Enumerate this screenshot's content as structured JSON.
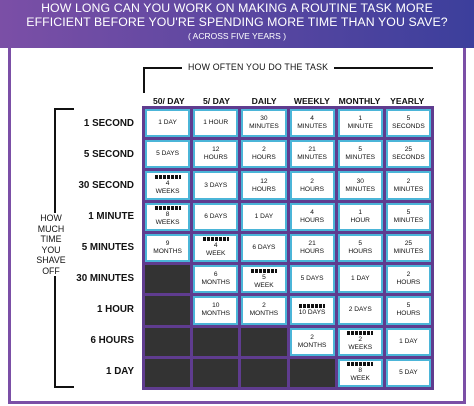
{
  "header": {
    "line1": "HOW LONG CAN YOU WORK ON MAKING A ROUTINE TASK MORE",
    "line2": "EFFICIENT BEFORE YOU'RE SPENDING MORE TIME THAN YOU SAVE?",
    "sub": "( ACROSS FIVE YEARS )"
  },
  "colors": {
    "banner_left": "#7b4fa6",
    "banner_right": "#3c3f9c",
    "grid_bg": "#5f3c8f",
    "cell_border": "#4bb5d8",
    "dark_cell": "#333333"
  },
  "columns_title": "HOW OFTEN YOU DO THE TASK",
  "columns": [
    "50/ DAY",
    "5/ DAY",
    "DAILY",
    "WEEKLY",
    "MONTHLY",
    "YEARLY"
  ],
  "side_label": [
    "HOW",
    "MUCH",
    "TIME",
    "YOU",
    "SHAVE",
    "OFF"
  ],
  "rows": [
    {
      "label": "1 SECOND",
      "cells": [
        {
          "t": [
            "1 DAY"
          ]
        },
        {
          "t": [
            "1 HOUR"
          ]
        },
        {
          "t": [
            "30",
            "MINUTES"
          ]
        },
        {
          "t": [
            "4",
            "MINUTES"
          ]
        },
        {
          "t": [
            "1",
            "MINUTE"
          ]
        },
        {
          "t": [
            "5",
            "SECONDS"
          ]
        }
      ]
    },
    {
      "label": "5 SECOND",
      "cells": [
        {
          "t": [
            "5 DAYS"
          ]
        },
        {
          "t": [
            "12",
            "HOURS"
          ]
        },
        {
          "t": [
            "2",
            "HOURS"
          ]
        },
        {
          "t": [
            "21",
            "MINUTES"
          ]
        },
        {
          "t": [
            "5",
            "MINUTES"
          ]
        },
        {
          "t": [
            "25",
            "SECONDS"
          ]
        }
      ]
    },
    {
      "label": "30 SECOND",
      "cells": [
        {
          "icon": true,
          "t": [
            "4",
            "WEEKS"
          ]
        },
        {
          "t": [
            "3 DAYS"
          ]
        },
        {
          "t": [
            "12",
            "HOURS"
          ]
        },
        {
          "t": [
            "2",
            "HOURS"
          ]
        },
        {
          "t": [
            "30",
            "MINUTES"
          ]
        },
        {
          "t": [
            "2",
            "MINUTES"
          ]
        }
      ]
    },
    {
      "label": "1 MINUTE",
      "cells": [
        {
          "icon": true,
          "t": [
            "8",
            "WEEKS"
          ]
        },
        {
          "t": [
            "6 DAYS"
          ]
        },
        {
          "t": [
            "1 DAY"
          ]
        },
        {
          "t": [
            "4",
            "HOURS"
          ]
        },
        {
          "t": [
            "1",
            "HOUR"
          ]
        },
        {
          "t": [
            "5",
            "MINUTES"
          ]
        }
      ]
    },
    {
      "label": "5 MINUTES",
      "cells": [
        {
          "t": [
            "9",
            "MONTHS"
          ]
        },
        {
          "icon": true,
          "t": [
            "4",
            "WEEK"
          ]
        },
        {
          "t": [
            "6 DAYS"
          ]
        },
        {
          "t": [
            "21",
            "HOURS"
          ]
        },
        {
          "t": [
            "5",
            "HOURS"
          ]
        },
        {
          "t": [
            "25",
            "MINUTES"
          ]
        }
      ]
    },
    {
      "label": "30 MINUTES",
      "cells": [
        {
          "dark": true
        },
        {
          "t": [
            "6",
            "MONTHS"
          ]
        },
        {
          "icon": true,
          "t": [
            "5",
            "WEEK"
          ]
        },
        {
          "t": [
            "5 DAYS"
          ]
        },
        {
          "t": [
            "1 DAY"
          ]
        },
        {
          "t": [
            "2",
            "HOURS"
          ]
        }
      ]
    },
    {
      "label": "1 HOUR",
      "cells": [
        {
          "dark": true
        },
        {
          "t": [
            "10",
            "MONTHS"
          ]
        },
        {
          "t": [
            "2",
            "MONTHS"
          ]
        },
        {
          "icon": true,
          "t": [
            "10 DAYS"
          ]
        },
        {
          "t": [
            "2 DAYS"
          ]
        },
        {
          "t": [
            "5",
            "HOURS"
          ]
        }
      ]
    },
    {
      "label": "6 HOURS",
      "cells": [
        {
          "dark": true
        },
        {
          "dark": true
        },
        {
          "dark": true
        },
        {
          "t": [
            "2",
            "MONTHS"
          ]
        },
        {
          "icon": true,
          "t": [
            "2",
            "WEEKS"
          ]
        },
        {
          "t": [
            "1 DAY"
          ]
        }
      ]
    },
    {
      "label": "1 DAY",
      "cells": [
        {
          "dark": true
        },
        {
          "dark": true
        },
        {
          "dark": true
        },
        {
          "dark": true
        },
        {
          "icon": true,
          "t": [
            "8",
            "WEEK"
          ]
        },
        {
          "t": [
            "5 DAY"
          ]
        }
      ]
    }
  ]
}
